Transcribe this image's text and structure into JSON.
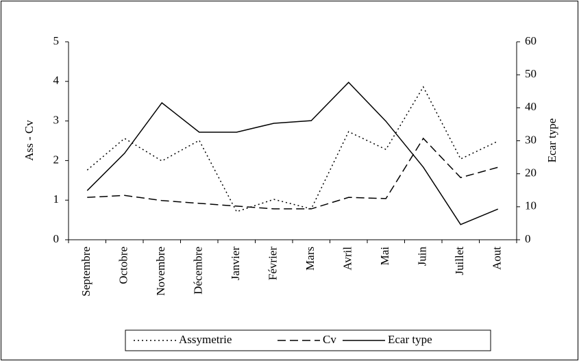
{
  "chart_data": {
    "type": "line",
    "categories": [
      "Septembre",
      "Octobre",
      "Novembre",
      "Décembre",
      "Janvier",
      "Février",
      "Mars",
      "Avril",
      "Mai",
      "Juin",
      "Juillet",
      "Aout"
    ],
    "series": [
      {
        "name": "Assymetrie",
        "color": "#000000",
        "style": "dotted",
        "values": [
          1.76,
          2.56,
          1.99,
          2.51,
          0.71,
          1.02,
          0.78,
          2.73,
          2.28,
          3.86,
          2.04,
          2.49
        ]
      },
      {
        "name": "Cv",
        "color": "#000000",
        "style": "dashed",
        "values": [
          1.07,
          1.12,
          0.99,
          0.92,
          0.85,
          0.78,
          0.78,
          1.07,
          1.04,
          2.56,
          1.57,
          1.83
        ]
      },
      {
        "name": "Ecar type",
        "color": "#000000",
        "style": "solid",
        "axis": "y2",
        "values": [
          14.9,
          26.2,
          41.5,
          32.6,
          32.6,
          35.3,
          36.1,
          47.7,
          35.9,
          22,
          4.6,
          9.3
        ]
      }
    ],
    "ylabel": "Ass - Cv",
    "y2label": "Ecar type",
    "ylim": [
      0,
      5
    ],
    "yticks": [
      0,
      1,
      2,
      3,
      4,
      5
    ],
    "y2lim": [
      0,
      60
    ],
    "y2ticks": [
      0,
      10,
      20,
      30,
      40,
      50,
      60
    ],
    "legend": "bottom"
  }
}
